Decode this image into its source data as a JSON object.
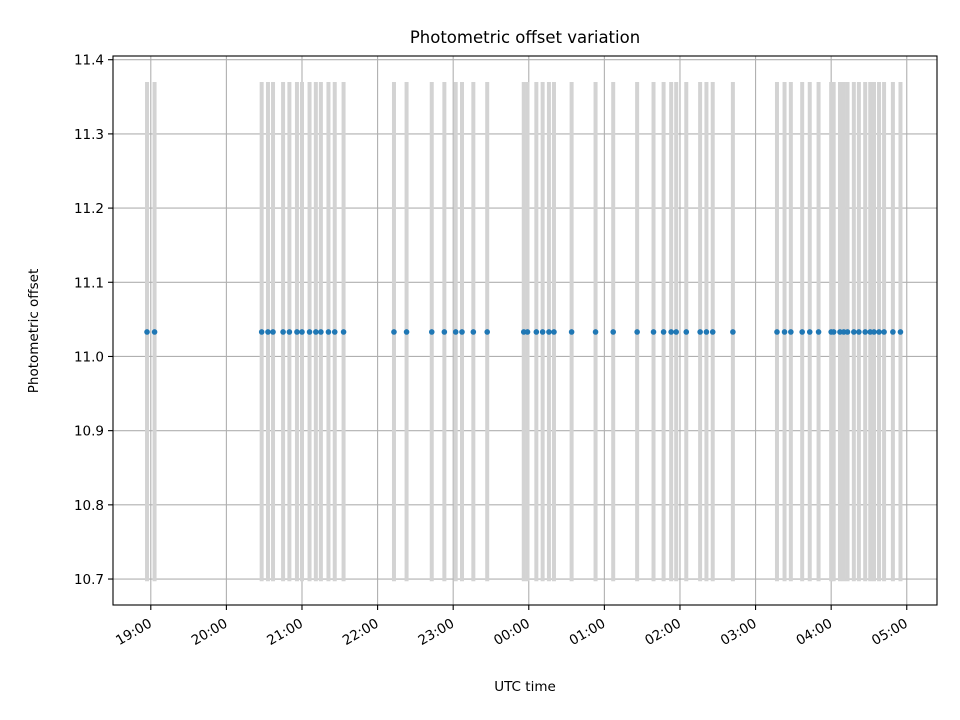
{
  "chart_data": {
    "type": "scatter",
    "title": "Photometric offset variation",
    "xlabel": "UTC time",
    "ylabel": "Photometric offset",
    "grid": true,
    "xlim": [
      "18:30",
      "05:24"
    ],
    "ylim": [
      10.665,
      11.405
    ],
    "x_ticks": [
      "19:00",
      "20:00",
      "21:00",
      "22:00",
      "23:00",
      "00:00",
      "01:00",
      "02:00",
      "03:00",
      "04:00",
      "05:00"
    ],
    "y_ticks": [
      "10.7",
      "10.8",
      "10.9",
      "11.0",
      "11.1",
      "11.2",
      "11.3",
      "11.4"
    ],
    "error_bar": {
      "low": 10.697,
      "high": 11.37
    },
    "colors": {
      "point": "#1f77b4",
      "errorbar": "#d3d3d3",
      "grid": "#b0b0b0"
    },
    "series": [
      {
        "x": [
          "18:57",
          "19:03",
          "20:28",
          "20:33",
          "20:37",
          "20:45",
          "20:50",
          "20:56",
          "21:00",
          "21:06",
          "21:11",
          "21:15",
          "21:21",
          "21:26",
          "21:33",
          "22:13",
          "22:23",
          "22:43",
          "22:53",
          "23:02",
          "23:07",
          "23:16",
          "23:27",
          "23:56",
          "23:59",
          "00:06",
          "00:11",
          "00:16",
          "00:20",
          "00:34",
          "00:53",
          "01:07",
          "01:26",
          "01:39",
          "01:47",
          "01:53",
          "01:57",
          "02:05",
          "02:16",
          "02:21",
          "02:26",
          "02:42",
          "03:17",
          "03:23",
          "03:28",
          "03:37",
          "03:43",
          "03:50",
          "04:00",
          "04:02",
          "04:07",
          "04:10",
          "04:13",
          "04:18",
          "04:22",
          "04:27",
          "04:31",
          "04:34",
          "04:38",
          "04:42",
          "04:49",
          "04:55"
        ],
        "y": [
          11.033,
          11.033,
          11.033,
          11.033,
          11.033,
          11.033,
          11.033,
          11.033,
          11.033,
          11.033,
          11.033,
          11.033,
          11.033,
          11.033,
          11.033,
          11.033,
          11.033,
          11.033,
          11.033,
          11.033,
          11.033,
          11.033,
          11.033,
          11.033,
          11.033,
          11.033,
          11.033,
          11.033,
          11.033,
          11.033,
          11.033,
          11.033,
          11.033,
          11.033,
          11.033,
          11.033,
          11.033,
          11.033,
          11.033,
          11.033,
          11.033,
          11.033,
          11.033,
          11.033,
          11.033,
          11.033,
          11.033,
          11.033,
          11.033,
          11.033,
          11.033,
          11.033,
          11.033,
          11.033,
          11.033,
          11.033,
          11.033,
          11.033,
          11.033,
          11.033,
          11.033,
          11.033
        ]
      }
    ]
  }
}
